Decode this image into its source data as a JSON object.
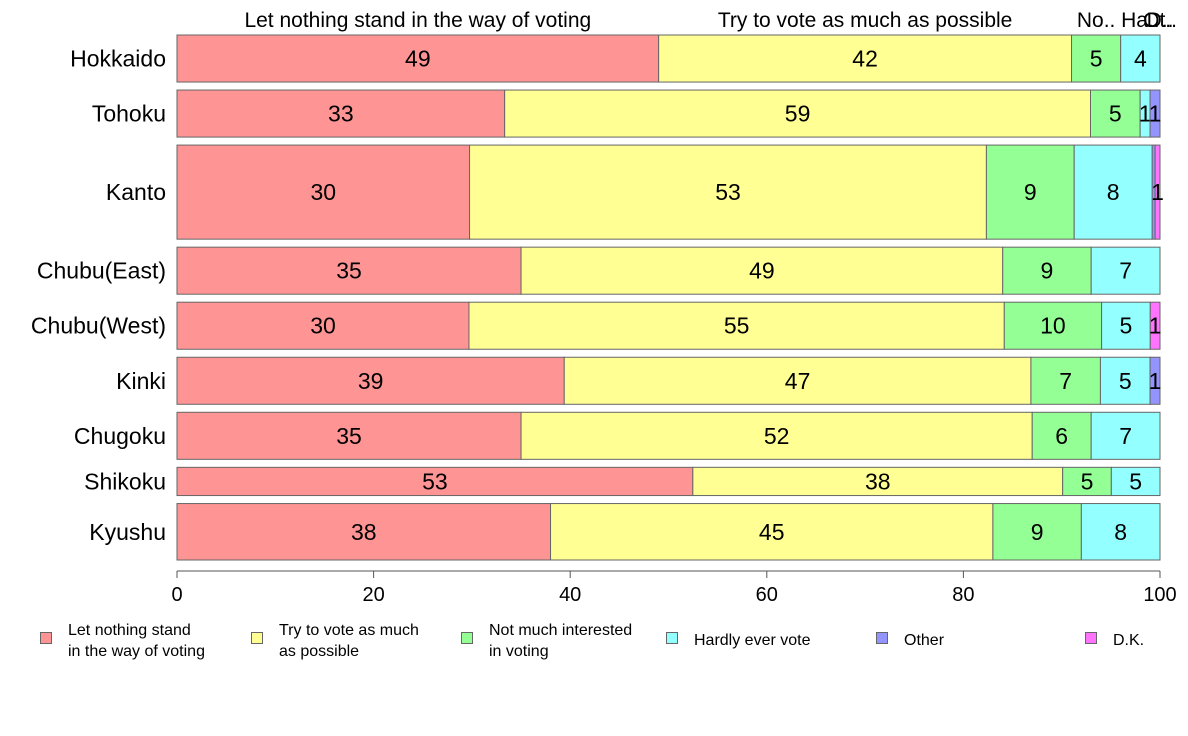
{
  "chart_data": {
    "type": "bar",
    "orientation": "horizontal",
    "stacked": true,
    "categories": [
      "Hokkaido",
      "Tohoku",
      "Kanto",
      "Chubu(East)",
      "Chubu(West)",
      "Kinki",
      "Chugoku",
      "Shikoku",
      "Kyushu"
    ],
    "series": [
      {
        "name": "Let nothing stand in the way of voting",
        "legend_label": "Let nothing stand\nin the way of voting",
        "top_label": "Let nothing stand in the way of voting",
        "color": "#ff9494",
        "values": [
          49,
          33,
          30,
          35,
          30,
          39,
          35,
          53,
          38
        ]
      },
      {
        "name": "Try to vote as much as possible",
        "legend_label": "Try to vote as much\nas possible",
        "top_label": "Try to vote as much as possible",
        "color": "#ffff94",
        "values": [
          42,
          59,
          53,
          49,
          55,
          47,
          52,
          38,
          45
        ]
      },
      {
        "name": "Not much interested in voting",
        "legend_label": "Not much interested\nin voting",
        "top_label": "No..",
        "color": "#94ff94",
        "values": [
          5,
          5,
          9,
          9,
          10,
          7,
          6,
          5,
          9
        ]
      },
      {
        "name": "Hardly ever vote",
        "legend_label": "Hardly ever vote",
        "top_label": "Ha..",
        "color": "#94ffff",
        "values": [
          4,
          1,
          8,
          7,
          5,
          5,
          7,
          5,
          8
        ]
      },
      {
        "name": "Other",
        "legend_label": "Other",
        "top_label": "Ot..",
        "color": "#9494ff",
        "values": [
          0,
          1,
          0.3,
          0,
          0,
          1,
          0,
          0,
          0
        ]
      },
      {
        "name": "D.K.",
        "legend_label": "D.K.",
        "top_label": "D..",
        "color": "#ff73ff",
        "values": [
          0,
          0,
          0.5,
          0,
          1,
          0,
          0,
          0,
          0
        ]
      }
    ],
    "data_labels": [
      [
        "49",
        "42",
        "5",
        "4",
        "",
        ""
      ],
      [
        "33",
        "59",
        "5",
        "1",
        "1",
        ""
      ],
      [
        "30",
        "53",
        "9",
        "8",
        "",
        "1"
      ],
      [
        "35",
        "49",
        "9",
        "7",
        "",
        ""
      ],
      [
        "30",
        "55",
        "10",
        "5",
        "",
        "1"
      ],
      [
        "39",
        "47",
        "7",
        "5",
        "1",
        ""
      ],
      [
        "35",
        "52",
        "6",
        "7",
        "",
        ""
      ],
      [
        "53",
        "38",
        "5",
        "5",
        "",
        ""
      ],
      [
        "38",
        "45",
        "9",
        "8",
        "",
        ""
      ]
    ],
    "row_weights": [
      1,
      1,
      2,
      1,
      1,
      1,
      1,
      0.6,
      1.2
    ],
    "xlim": [
      0,
      100
    ],
    "xticks": [
      0,
      20,
      40,
      60,
      80,
      100
    ],
    "xlabel": "",
    "ylabel": "",
    "grid": false,
    "legend_position": "bottom"
  }
}
